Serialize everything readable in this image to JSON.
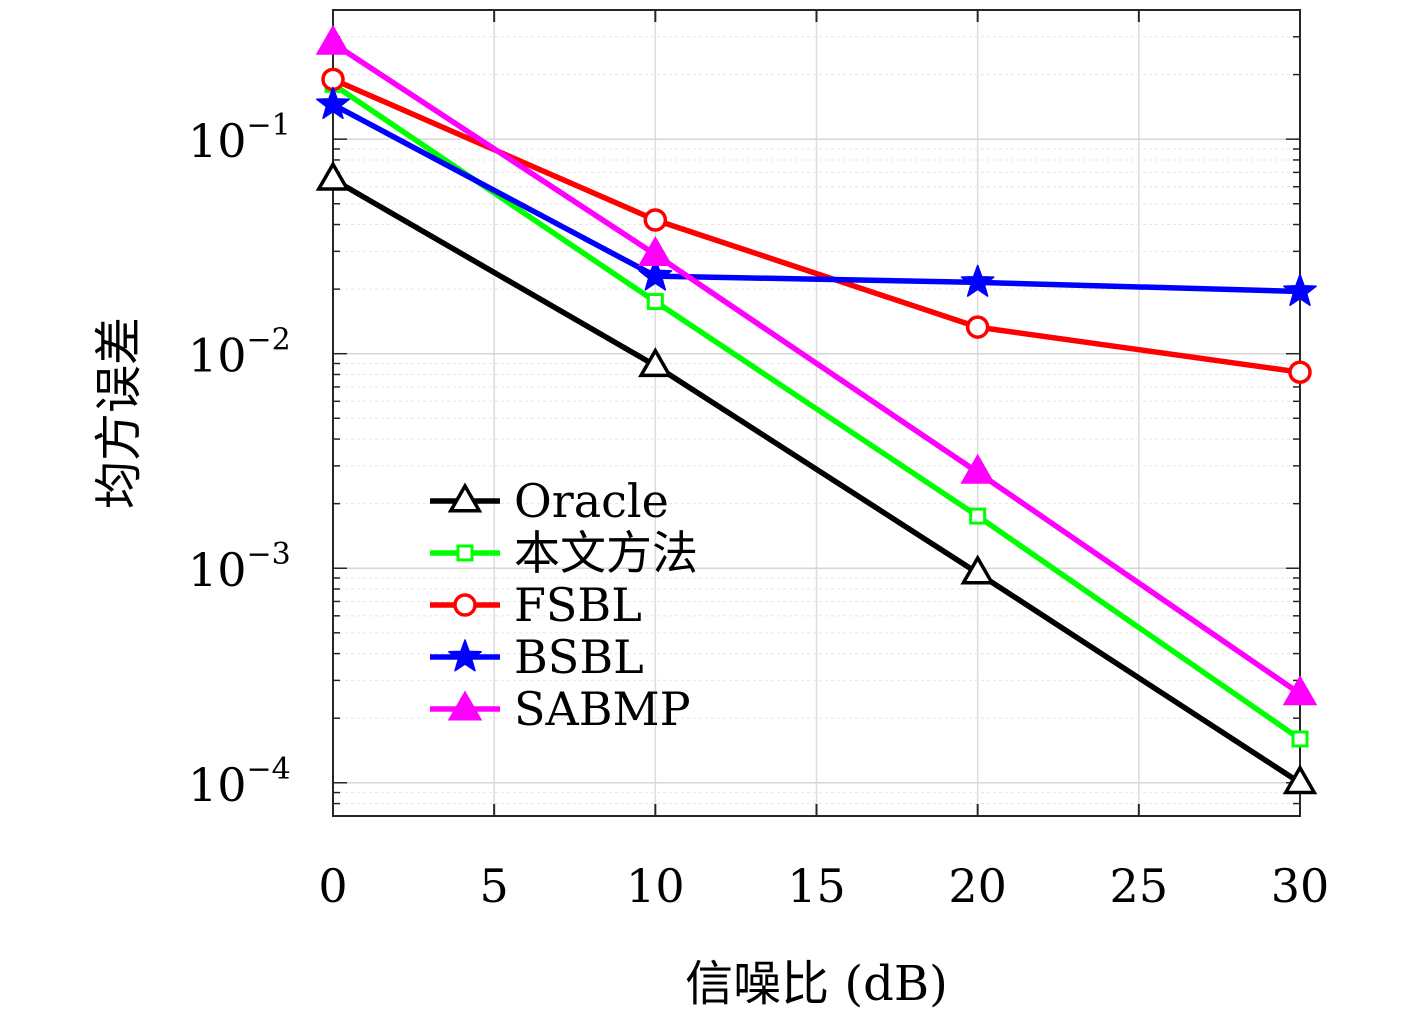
{
  "chart_data": {
    "type": "line",
    "xlabel": "信噪比 (dB)",
    "ylabel": "均方误差",
    "xlim": [
      0,
      30
    ],
    "ylim": [
      7e-05,
      0.4
    ],
    "yscale": "log",
    "grid": true,
    "legend_position": "lower-left-center",
    "x_ticks": [
      0,
      5,
      10,
      15,
      20,
      25,
      30
    ],
    "x_tick_labels": [
      "0",
      "5",
      "10",
      "15",
      "20",
      "25",
      "30"
    ],
    "y_ticks": [
      0.1,
      0.01,
      0.001,
      0.0001
    ],
    "y_tick_labels": [
      {
        "base": "10",
        "exp": "−1"
      },
      {
        "base": "10",
        "exp": "−2"
      },
      {
        "base": "10",
        "exp": "−3"
      },
      {
        "base": "10",
        "exp": "−4"
      }
    ],
    "x": [
      0,
      10,
      20,
      30
    ],
    "series": [
      {
        "name": "Oracle",
        "color": "#000000",
        "marker": "triangle-up-open",
        "values": [
          0.065,
          0.0088,
          0.00095,
          0.0001
        ]
      },
      {
        "name": "本文方法",
        "color": "#00ff00",
        "marker": "square-open",
        "values": [
          0.18,
          0.0175,
          0.00175,
          0.00016
        ]
      },
      {
        "name": "FSBL",
        "color": "#ff0000",
        "marker": "circle-open",
        "values": [
          0.19,
          0.042,
          0.0133,
          0.0082
        ]
      },
      {
        "name": "BSBL",
        "color": "#0000ff",
        "marker": "star-filled",
        "values": [
          0.145,
          0.023,
          0.0215,
          0.0195
        ]
      },
      {
        "name": "SABMP",
        "color": "#ff00ff",
        "marker": "triangle-up-filled",
        "values": [
          0.28,
          0.029,
          0.0028,
          0.00026
        ]
      }
    ]
  }
}
